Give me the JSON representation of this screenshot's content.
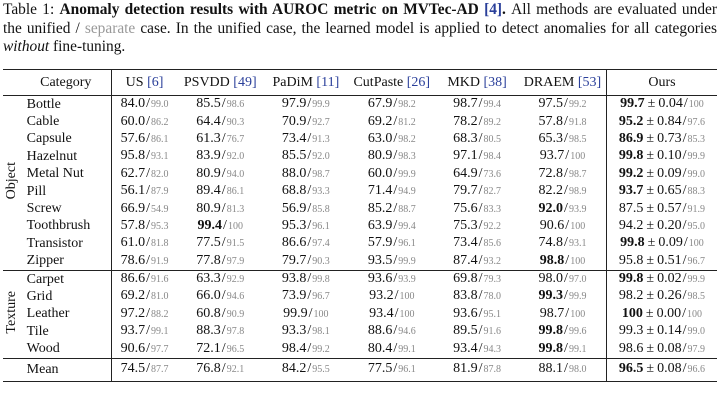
{
  "caption": {
    "parts": [
      {
        "text": "Table 1: ",
        "style": "normal"
      },
      {
        "text": "Anomaly detection results with AUROC metric on MVTec-AD ",
        "style": "bold"
      },
      {
        "text": "[4]",
        "style": "ref"
      },
      {
        "text": ". ",
        "style": "bold"
      },
      {
        "text": "All methods are evaluated under the unified / ",
        "style": "normal"
      },
      {
        "text": "separate",
        "style": "gray"
      },
      {
        "text": " case. In the unified case, the learned model is applied to detect anomalies for all categories ",
        "style": "normal"
      },
      {
        "text": "without",
        "style": "italic"
      },
      {
        "text": " fine-tuning.",
        "style": "normal"
      }
    ]
  },
  "table": {
    "divider": "/",
    "pm": "±",
    "header": {
      "category": "Category",
      "methods": [
        {
          "name": "US",
          "ref": "[6]"
        },
        {
          "name": "PSVDD",
          "ref": "[49]"
        },
        {
          "name": "PaDiM",
          "ref": "[11]"
        },
        {
          "name": "CutPaste",
          "ref": "[26]"
        },
        {
          "name": "MKD",
          "ref": "[38]"
        },
        {
          "name": "DRAEM",
          "ref": "[53]"
        },
        {
          "name": "Ours"
        }
      ]
    },
    "groups": [
      {
        "label": "Object",
        "rows": [
          {
            "category": "Bottle",
            "cells": [
              {
                "unified": "84.0",
                "separate": "99.0"
              },
              {
                "unified": "85.5",
                "separate": "98.6"
              },
              {
                "unified": "97.9",
                "separate": "99.9"
              },
              {
                "unified": "67.9",
                "separate": "98.2"
              },
              {
                "unified": "98.7",
                "separate": "99.4"
              },
              {
                "unified": "97.5",
                "separate": "99.2"
              },
              {
                "unified": "99.7",
                "std": "0.04",
                "separate": "100",
                "bold": true
              }
            ]
          },
          {
            "category": "Cable",
            "cells": [
              {
                "unified": "60.0",
                "separate": "86.2"
              },
              {
                "unified": "64.4",
                "separate": "90.3"
              },
              {
                "unified": "70.9",
                "separate": "92.7"
              },
              {
                "unified": "69.2",
                "separate": "81.2"
              },
              {
                "unified": "78.2",
                "separate": "89.2"
              },
              {
                "unified": "57.8",
                "separate": "91.8"
              },
              {
                "unified": "95.2",
                "std": "0.84",
                "separate": "97.6",
                "bold": true
              }
            ]
          },
          {
            "category": "Capsule",
            "cells": [
              {
                "unified": "57.6",
                "separate": "86.1"
              },
              {
                "unified": "61.3",
                "separate": "76.7"
              },
              {
                "unified": "73.4",
                "separate": "91.3"
              },
              {
                "unified": "63.0",
                "separate": "98.2"
              },
              {
                "unified": "68.3",
                "separate": "80.5"
              },
              {
                "unified": "65.3",
                "separate": "98.5"
              },
              {
                "unified": "86.9",
                "std": "0.73",
                "separate": "85.3",
                "bold": true
              }
            ]
          },
          {
            "category": "Hazelnut",
            "cells": [
              {
                "unified": "95.8",
                "separate": "93.1"
              },
              {
                "unified": "83.9",
                "separate": "92.0"
              },
              {
                "unified": "85.5",
                "separate": "92.0"
              },
              {
                "unified": "80.9",
                "separate": "98.3"
              },
              {
                "unified": "97.1",
                "separate": "98.4"
              },
              {
                "unified": "93.7",
                "separate": "100"
              },
              {
                "unified": "99.8",
                "std": "0.10",
                "separate": "99.9",
                "bold": true
              }
            ]
          },
          {
            "category": "Metal Nut",
            "cells": [
              {
                "unified": "62.7",
                "separate": "82.0"
              },
              {
                "unified": "80.9",
                "separate": "94.0"
              },
              {
                "unified": "88.0",
                "separate": "98.7"
              },
              {
                "unified": "60.0",
                "separate": "99.9"
              },
              {
                "unified": "64.9",
                "separate": "73.6"
              },
              {
                "unified": "72.8",
                "separate": "98.7"
              },
              {
                "unified": "99.2",
                "std": "0.09",
                "separate": "99.0",
                "bold": true
              }
            ]
          },
          {
            "category": "Pill",
            "cells": [
              {
                "unified": "56.1",
                "separate": "87.9"
              },
              {
                "unified": "89.4",
                "separate": "86.1"
              },
              {
                "unified": "68.8",
                "separate": "93.3"
              },
              {
                "unified": "71.4",
                "separate": "94.9"
              },
              {
                "unified": "79.7",
                "separate": "82.7"
              },
              {
                "unified": "82.2",
                "separate": "98.9"
              },
              {
                "unified": "93.7",
                "std": "0.65",
                "separate": "88.3",
                "bold": true
              }
            ]
          },
          {
            "category": "Screw",
            "cells": [
              {
                "unified": "66.9",
                "separate": "54.9"
              },
              {
                "unified": "80.9",
                "separate": "81.3"
              },
              {
                "unified": "56.9",
                "separate": "85.8"
              },
              {
                "unified": "85.2",
                "separate": "88.7"
              },
              {
                "unified": "75.6",
                "separate": "83.3"
              },
              {
                "unified": "92.0",
                "separate": "93.9",
                "bold": true
              },
              {
                "unified": "87.5",
                "std": "0.57",
                "separate": "91.9"
              }
            ]
          },
          {
            "category": "Toothbrush",
            "cells": [
              {
                "unified": "57.8",
                "separate": "95.3"
              },
              {
                "unified": "99.4",
                "separate": "100",
                "bold": true
              },
              {
                "unified": "95.3",
                "separate": "96.1"
              },
              {
                "unified": "63.9",
                "separate": "99.4"
              },
              {
                "unified": "75.3",
                "separate": "92.2"
              },
              {
                "unified": "90.6",
                "separate": "100"
              },
              {
                "unified": "94.2",
                "std": "0.20",
                "separate": "95.0"
              }
            ]
          },
          {
            "category": "Transistor",
            "cells": [
              {
                "unified": "61.0",
                "separate": "81.8"
              },
              {
                "unified": "77.5",
                "separate": "91.5"
              },
              {
                "unified": "86.6",
                "separate": "97.4"
              },
              {
                "unified": "57.9",
                "separate": "96.1"
              },
              {
                "unified": "73.4",
                "separate": "85.6"
              },
              {
                "unified": "74.8",
                "separate": "93.1"
              },
              {
                "unified": "99.8",
                "std": "0.09",
                "separate": "100",
                "bold": true
              }
            ]
          },
          {
            "category": "Zipper",
            "cells": [
              {
                "unified": "78.6",
                "separate": "91.9"
              },
              {
                "unified": "77.8",
                "separate": "97.9"
              },
              {
                "unified": "79.7",
                "separate": "90.3"
              },
              {
                "unified": "93.5",
                "separate": "99.9"
              },
              {
                "unified": "87.4",
                "separate": "93.2"
              },
              {
                "unified": "98.8",
                "separate": "100",
                "bold": true
              },
              {
                "unified": "95.8",
                "std": "0.51",
                "separate": "96.7"
              }
            ]
          }
        ]
      },
      {
        "label": "Texture",
        "rows": [
          {
            "category": "Carpet",
            "cells": [
              {
                "unified": "86.6",
                "separate": "91.6"
              },
              {
                "unified": "63.3",
                "separate": "92.9"
              },
              {
                "unified": "93.8",
                "separate": "99.8"
              },
              {
                "unified": "93.6",
                "separate": "93.9"
              },
              {
                "unified": "69.8",
                "separate": "79.3"
              },
              {
                "unified": "98.0",
                "separate": "97.0"
              },
              {
                "unified": "99.8",
                "std": "0.02",
                "separate": "99.9",
                "bold": true
              }
            ]
          },
          {
            "category": "Grid",
            "cells": [
              {
                "unified": "69.2",
                "separate": "81.0"
              },
              {
                "unified": "66.0",
                "separate": "94.6"
              },
              {
                "unified": "73.9",
                "separate": "96.7"
              },
              {
                "unified": "93.2",
                "separate": "100"
              },
              {
                "unified": "83.8",
                "separate": "78.0"
              },
              {
                "unified": "99.3",
                "separate": "99.9",
                "bold": true
              },
              {
                "unified": "98.2",
                "std": "0.26",
                "separate": "98.5"
              }
            ]
          },
          {
            "category": "Leather",
            "cells": [
              {
                "unified": "97.2",
                "separate": "88.2"
              },
              {
                "unified": "60.8",
                "separate": "90.9"
              },
              {
                "unified": "99.9",
                "separate": "100"
              },
              {
                "unified": "93.4",
                "separate": "100"
              },
              {
                "unified": "93.6",
                "separate": "95.1"
              },
              {
                "unified": "98.7",
                "separate": "100"
              },
              {
                "unified": "100",
                "std": "0.00",
                "separate": "100",
                "bold": true
              }
            ]
          },
          {
            "category": "Tile",
            "cells": [
              {
                "unified": "93.7",
                "separate": "99.1"
              },
              {
                "unified": "88.3",
                "separate": "97.8"
              },
              {
                "unified": "93.3",
                "separate": "98.1"
              },
              {
                "unified": "88.6",
                "separate": "94.6"
              },
              {
                "unified": "89.5",
                "separate": "91.6"
              },
              {
                "unified": "99.8",
                "separate": "99.6",
                "bold": true
              },
              {
                "unified": "99.3",
                "std": "0.14",
                "separate": "99.0"
              }
            ]
          },
          {
            "category": "Wood",
            "cells": [
              {
                "unified": "90.6",
                "separate": "97.7"
              },
              {
                "unified": "72.1",
                "separate": "96.5"
              },
              {
                "unified": "98.4",
                "separate": "99.2"
              },
              {
                "unified": "80.4",
                "separate": "99.1"
              },
              {
                "unified": "93.4",
                "separate": "94.3"
              },
              {
                "unified": "99.8",
                "separate": "99.1",
                "bold": true
              },
              {
                "unified": "98.6",
                "std": "0.08",
                "separate": "97.9"
              }
            ]
          }
        ]
      }
    ],
    "mean": {
      "category": "Mean",
      "cells": [
        {
          "unified": "74.5",
          "separate": "87.7"
        },
        {
          "unified": "76.8",
          "separate": "92.1"
        },
        {
          "unified": "84.2",
          "separate": "95.5"
        },
        {
          "unified": "77.5",
          "separate": "96.1"
        },
        {
          "unified": "81.9",
          "separate": "87.8"
        },
        {
          "unified": "88.1",
          "separate": "98.0"
        },
        {
          "unified": "96.5",
          "std": "0.08",
          "separate": "96.6",
          "bold": true
        }
      ]
    }
  }
}
